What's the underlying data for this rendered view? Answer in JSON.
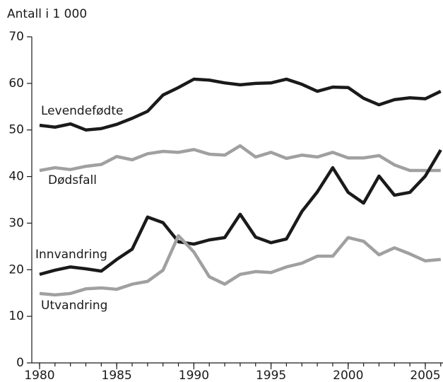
{
  "chart_data": {
    "type": "line",
    "y_label": "Antall i 1 000",
    "x": [
      1980,
      1981,
      1982,
      1983,
      1984,
      1985,
      1986,
      1987,
      1988,
      1989,
      1990,
      1991,
      1992,
      1993,
      1994,
      1995,
      1996,
      1997,
      1998,
      1999,
      2000,
      2001,
      2002,
      2003,
      2004,
      2005,
      2006
    ],
    "series": [
      {
        "name": "Levendefødte",
        "color": "#1a1a1a",
        "values": [
          51.0,
          50.6,
          51.3,
          50.0,
          50.3,
          51.2,
          52.5,
          54.0,
          57.5,
          59.1,
          60.9,
          60.7,
          60.1,
          59.7,
          60.0,
          60.1,
          60.9,
          59.8,
          58.3,
          59.2,
          59.1,
          56.8,
          55.4,
          56.5,
          56.9,
          56.7,
          58.3
        ]
      },
      {
        "name": "Dødsfall",
        "color": "#a0a0a0",
        "values": [
          41.3,
          41.9,
          41.5,
          42.2,
          42.6,
          44.3,
          43.6,
          44.9,
          45.4,
          45.2,
          45.8,
          44.8,
          44.6,
          46.6,
          44.2,
          45.2,
          43.9,
          44.6,
          44.2,
          45.2,
          44.0,
          44.0,
          44.5,
          42.5,
          41.3,
          41.3,
          41.3
        ]
      },
      {
        "name": "Innvandring",
        "color": "#1a1a1a",
        "values": [
          19.0,
          19.9,
          20.6,
          20.2,
          19.7,
          22.2,
          24.4,
          31.3,
          30.1,
          26.0,
          25.5,
          26.4,
          26.9,
          31.9,
          27.0,
          25.8,
          26.6,
          32.5,
          36.7,
          41.9,
          36.6,
          34.3,
          40.1,
          36.0,
          36.6,
          40.1,
          45.7
        ]
      },
      {
        "name": "Utvandring",
        "color": "#a0a0a0",
        "values": [
          14.9,
          14.6,
          14.9,
          15.9,
          16.1,
          15.8,
          16.9,
          17.5,
          19.9,
          27.3,
          23.8,
          18.5,
          16.9,
          19.0,
          19.6,
          19.4,
          20.6,
          21.4,
          22.9,
          22.9,
          26.9,
          26.1,
          23.2,
          24.7,
          23.4,
          21.9,
          22.2
        ]
      }
    ],
    "xlim": [
      1980,
      2006
    ],
    "xticks": [
      1980,
      1985,
      1990,
      1995,
      2000,
      2005
    ],
    "ylim": [
      0,
      70
    ],
    "yticks": [
      0,
      10,
      20,
      30,
      40,
      50,
      60,
      70
    ],
    "grid": false
  }
}
